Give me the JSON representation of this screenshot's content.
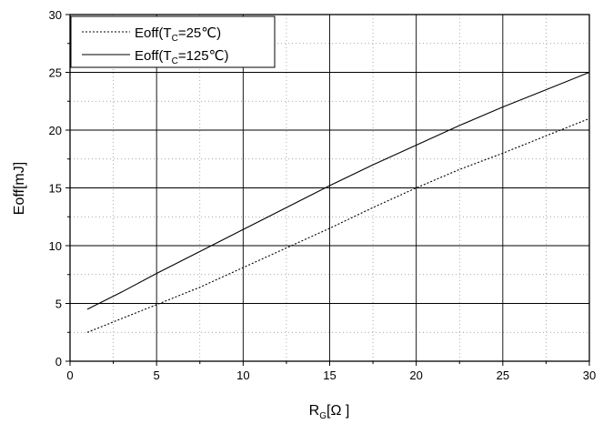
{
  "chart_data": {
    "type": "line",
    "title": "",
    "xlabel": {
      "main": "R",
      "sub": "G",
      "rest": "[Ω  ]"
    },
    "ylabel": "Eoff[mJ]",
    "xlim": [
      0,
      30
    ],
    "ylim": [
      0,
      30
    ],
    "x_ticks": [
      "0",
      "5",
      "10",
      "15",
      "20",
      "25",
      "30"
    ],
    "y_ticks": [
      "0",
      "5",
      "10",
      "15",
      "20",
      "25",
      "30"
    ],
    "grid": true,
    "legend_position": "top-left",
    "series": [
      {
        "name": "Eoff(TC=25℃)",
        "label_parts": {
          "pre": "Eoff(T",
          "sub": "C",
          "post": "=25℃)"
        },
        "style": "dotted",
        "color": "#000000",
        "x": [
          1,
          3,
          5,
          7.5,
          10,
          12.5,
          15,
          17.5,
          20,
          22.5,
          25,
          27.5,
          30
        ],
        "y": [
          2.5,
          3.7,
          4.9,
          6.4,
          8.1,
          9.8,
          11.5,
          13.3,
          15.0,
          16.6,
          18.0,
          19.5,
          21.0
        ]
      },
      {
        "name": "Eoff(TC=125℃)",
        "label_parts": {
          "pre": "Eoff(T",
          "sub": "C",
          "post": "=125℃)"
        },
        "style": "solid",
        "color": "#000000",
        "x": [
          1,
          3,
          5,
          7.5,
          10,
          12.5,
          15,
          17.5,
          20,
          22.5,
          25,
          27.5,
          30
        ],
        "y": [
          4.5,
          6.0,
          7.6,
          9.5,
          11.4,
          13.3,
          15.2,
          17.0,
          18.7,
          20.4,
          22.0,
          23.5,
          25.0
        ]
      }
    ]
  }
}
